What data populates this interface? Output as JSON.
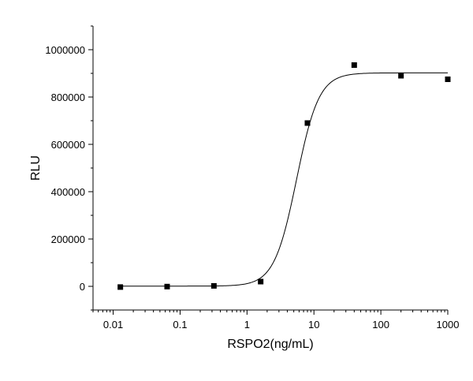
{
  "chart_data": {
    "type": "scatter",
    "title": "",
    "xlabel": "RSPO2(ng/mL)",
    "ylabel": "RLU",
    "x_scale": "log",
    "xlim": [
      0.005,
      1000
    ],
    "ylim": [
      -100000,
      1100000
    ],
    "x_ticks": [
      0.01,
      0.1,
      1,
      10,
      100,
      1000
    ],
    "x_tick_labels": [
      "0.01",
      "0.1",
      "1",
      "10",
      "100",
      "1000"
    ],
    "y_ticks": [
      0,
      200000,
      400000,
      600000,
      800000,
      1000000
    ],
    "y_tick_labels": [
      "0",
      "200000",
      "400000",
      "600000",
      "800000",
      "1000000"
    ],
    "grid": false,
    "legend": "none",
    "series": [
      {
        "marker": "square",
        "color": "#000000",
        "x": [
          0.0128,
          0.064,
          0.32,
          1.6,
          8,
          40,
          200,
          1000
        ],
        "y": [
          -3000,
          -1000,
          2000,
          20000,
          690000,
          935000,
          890000,
          875000
        ]
      }
    ],
    "fit_curve": {
      "type": "4PL",
      "color": "#000000",
      "bottom": 1000,
      "top": 902000,
      "ec50": 5.5,
      "hill": 2.6
    }
  }
}
